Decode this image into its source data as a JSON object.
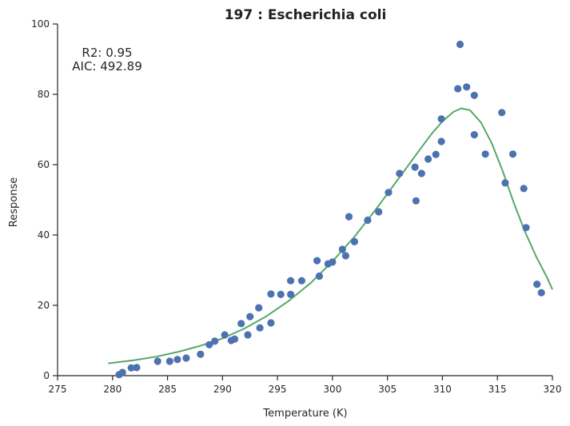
{
  "chart_data": {
    "type": "scatter",
    "title": "197 : Escherichia coli",
    "xlabel": "Temperature (K)",
    "ylabel": "Response",
    "xlim": [
      275,
      320
    ],
    "ylim": [
      0,
      100
    ],
    "xticks": [
      275,
      280,
      285,
      290,
      295,
      300,
      305,
      310,
      315,
      320
    ],
    "yticks": [
      0,
      20,
      40,
      60,
      80,
      100
    ],
    "grid": false,
    "annotations": [
      "R2: 0.95",
      "AIC: 492.89"
    ],
    "colors": {
      "points": "#4c72b0",
      "fit": "#55a868"
    },
    "series": [
      {
        "type": "scatter",
        "points": [
          [
            280.6,
            0.3
          ],
          [
            280.9,
            0.9
          ],
          [
            281.7,
            2.2
          ],
          [
            282.2,
            2.3
          ],
          [
            284.1,
            4.1
          ],
          [
            285.2,
            4.1
          ],
          [
            285.9,
            4.6
          ],
          [
            286.7,
            5.0
          ],
          [
            288.0,
            6.1
          ],
          [
            288.8,
            8.8
          ],
          [
            289.3,
            9.8
          ],
          [
            290.2,
            11.6
          ],
          [
            290.8,
            10.0
          ],
          [
            291.1,
            10.4
          ],
          [
            291.7,
            14.8
          ],
          [
            292.3,
            11.6
          ],
          [
            292.5,
            16.8
          ],
          [
            293.3,
            19.3
          ],
          [
            293.4,
            13.6
          ],
          [
            294.4,
            23.2
          ],
          [
            294.4,
            15.0
          ],
          [
            295.3,
            23.1
          ],
          [
            296.2,
            27.0
          ],
          [
            296.2,
            23.1
          ],
          [
            297.2,
            27.0
          ],
          [
            298.6,
            32.7
          ],
          [
            298.8,
            28.3
          ],
          [
            299.6,
            31.8
          ],
          [
            300.0,
            32.3
          ],
          [
            300.9,
            35.9
          ],
          [
            301.2,
            34.1
          ],
          [
            301.5,
            45.2
          ],
          [
            302.0,
            38.1
          ],
          [
            303.2,
            44.2
          ],
          [
            304.2,
            46.6
          ],
          [
            305.1,
            52.1
          ],
          [
            306.1,
            57.5
          ],
          [
            307.5,
            59.3
          ],
          [
            307.6,
            49.7
          ],
          [
            308.1,
            57.5
          ],
          [
            308.7,
            61.6
          ],
          [
            309.4,
            62.9
          ],
          [
            309.9,
            66.6
          ],
          [
            309.9,
            73.0
          ],
          [
            311.4,
            81.6
          ],
          [
            311.6,
            94.2
          ],
          [
            312.2,
            82.1
          ],
          [
            312.9,
            79.7
          ],
          [
            312.9,
            68.5
          ],
          [
            313.9,
            63.0
          ],
          [
            315.4,
            74.8
          ],
          [
            315.7,
            54.8
          ],
          [
            316.4,
            63.0
          ],
          [
            317.4,
            53.2
          ],
          [
            317.6,
            42.1
          ],
          [
            318.6,
            26.0
          ],
          [
            319.0,
            23.6
          ]
        ]
      },
      {
        "type": "line",
        "points": [
          [
            279.6,
            3.5
          ],
          [
            282,
            4.4
          ],
          [
            284,
            5.4
          ],
          [
            286,
            6.8
          ],
          [
            288,
            8.5
          ],
          [
            290,
            10.6
          ],
          [
            292,
            13.4
          ],
          [
            294,
            16.9
          ],
          [
            296,
            21.2
          ],
          [
            298,
            26.3
          ],
          [
            300,
            32.5
          ],
          [
            302,
            39.5
          ],
          [
            304,
            47.5
          ],
          [
            306,
            56.0
          ],
          [
            308,
            64.5
          ],
          [
            309,
            68.7
          ],
          [
            310,
            72.3
          ],
          [
            311,
            75.0
          ],
          [
            311.7,
            76.0
          ],
          [
            312.5,
            75.5
          ],
          [
            313.5,
            72.0
          ],
          [
            314.5,
            66.0
          ],
          [
            315.5,
            58.0
          ],
          [
            316.5,
            49.0
          ],
          [
            317.5,
            41.0
          ],
          [
            318.5,
            34.0
          ],
          [
            319.5,
            28.0
          ],
          [
            320,
            24.5
          ]
        ]
      }
    ]
  }
}
